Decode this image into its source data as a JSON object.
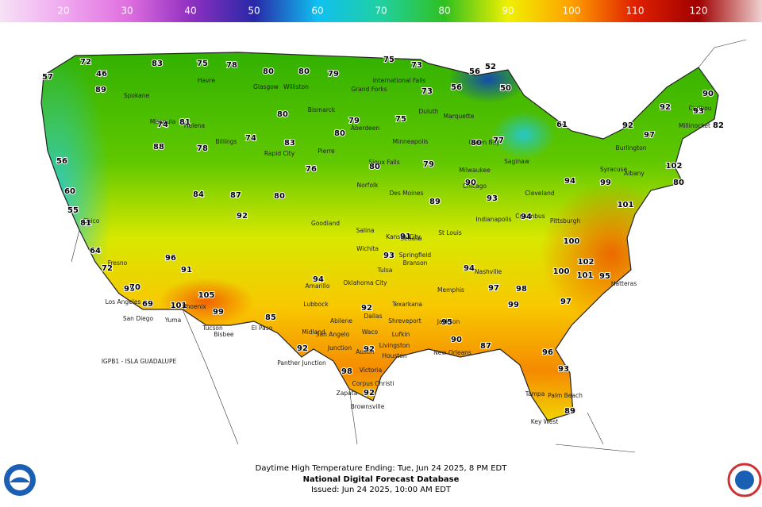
{
  "colorbar": {
    "ticks": [
      20,
      30,
      40,
      50,
      60,
      70,
      80,
      90,
      100,
      110,
      120
    ],
    "colors": [
      "#f6e2f6",
      "#f0a8f0",
      "#e070e0",
      "#9030c0",
      "#2828a8",
      "#10c0f0",
      "#20d0a0",
      "#30c020",
      "#f0f000",
      "#ffa000",
      "#e02000",
      "#a00000",
      "#f0d0d0"
    ]
  },
  "map": {
    "temperatures": [
      57,
      72,
      46,
      89,
      83,
      75,
      78,
      80,
      80,
      79,
      75,
      73,
      52,
      56,
      50,
      56,
      61,
      92,
      97,
      92,
      93,
      90,
      82,
      102,
      80,
      99,
      94,
      101,
      100,
      102,
      100,
      101,
      95,
      97,
      99,
      96,
      93,
      89,
      87,
      90,
      92,
      98,
      92,
      92,
      85,
      101,
      91,
      96,
      105,
      99,
      95,
      69,
      70,
      64,
      72,
      55,
      60,
      56,
      81,
      88,
      87,
      84,
      92,
      80,
      76,
      80,
      79,
      89,
      91,
      93,
      94,
      92,
      94,
      98,
      97,
      95,
      94,
      93,
      90,
      80,
      77,
      73,
      75,
      79,
      80,
      80,
      83,
      74,
      81,
      74,
      78
    ],
    "places": [
      "Havre",
      "Glasgow",
      "Williston",
      "Bismarck",
      "Grand Forks",
      "International Falls",
      "Spokane",
      "Missoula",
      "Helena",
      "Billings",
      "Goodland",
      "Salina",
      "Wichita",
      "Tulsa",
      "Oklahoma City",
      "Amarillo",
      "Lubbock",
      "Midland",
      "San Angelo",
      "Abilene",
      "Dallas",
      "Waco",
      "Austin",
      "Houston",
      "Victoria",
      "Corpus Christi",
      "Zapata",
      "Brownsville",
      "Shreveport",
      "Jackson",
      "New Orleans",
      "Memphis",
      "Nashville",
      "Chicago",
      "Indianapolis",
      "Columbus",
      "Pittsburgh",
      "Cleveland",
      "Saginaw",
      "Syracuse",
      "Albany",
      "Burlington",
      "Caribou",
      "Millinocket",
      "Hatteras",
      "Tampa",
      "Key West",
      "Palm Beach",
      "Tucson",
      "Phoenix",
      "Bisbee",
      "El Paso",
      "Yuma",
      "San Diego",
      "Los Angeles",
      "Fresno",
      "Chico",
      "Kansas City",
      "St Louis",
      "Sedalia",
      "Springfield",
      "Branson",
      "Des Moines",
      "Norfolk",
      "Rapid City",
      "Pierre",
      "Aberdeen",
      "Sioux Falls",
      "Duluth",
      "Minneapolis",
      "Green Bay",
      "Milwaukee",
      "Marquette",
      "Panther Junction",
      "Junction",
      "Livingston",
      "Lufkin",
      "Texarkana"
    ],
    "offshore_station": "IGPB1 - ISLA GUADALUPE"
  },
  "caption": {
    "title": "Daytime High Temperature Ending: Tue, Jun 24 2025, 8 PM EDT",
    "source": "National Digital Forecast Database",
    "issued": "Issued: Jun 24 2025, 10:00 AM EDT"
  }
}
